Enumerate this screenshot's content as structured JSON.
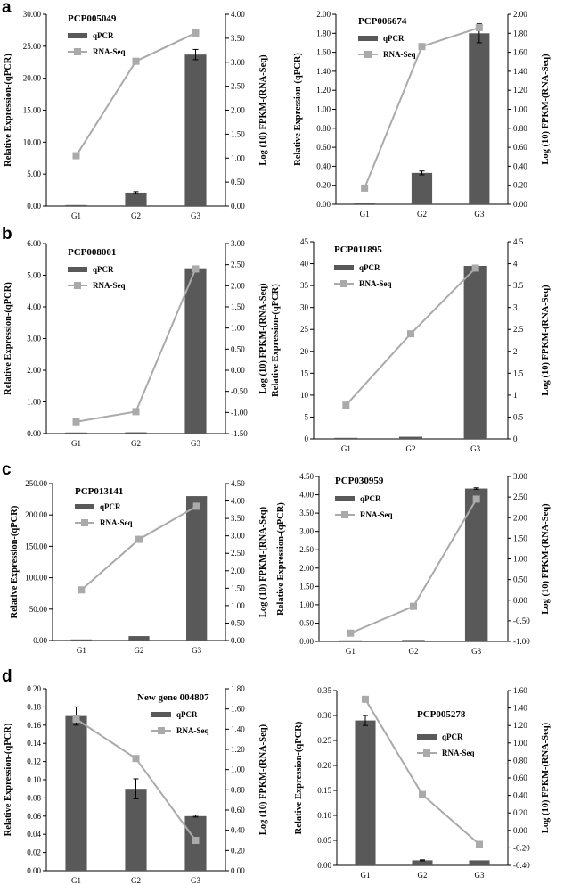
{
  "panels": [
    {
      "letter": "a"
    },
    {
      "letter": "b"
    },
    {
      "letter": "c"
    },
    {
      "letter": "d"
    }
  ],
  "legend": {
    "bar": "qPCR",
    "line": "RNA-Seq"
  },
  "colors": {
    "bar": "#595959",
    "line": "#aaaaaa",
    "axis": "#000000"
  },
  "chart_data": [
    {
      "type": "bar",
      "title": "PCP005049",
      "categories": [
        "G1",
        "G2",
        "G3"
      ],
      "ylabel": "Relative Expression-(qPCR)",
      "y2label": "Log (10) FPKM-(RNA-Seq)",
      "yticks": [
        "0.00",
        "5.00",
        "10.00",
        "15.00",
        "20.00",
        "25.00",
        "30.00"
      ],
      "ylim": [
        0,
        30
      ],
      "y2ticks": [
        "0.00",
        "0.50",
        "1.00",
        "1.50",
        "2.00",
        "2.50",
        "3.00",
        "3.50",
        "4.00"
      ],
      "y2lim": [
        0,
        4
      ],
      "series": [
        {
          "name": "qPCR",
          "type": "bar",
          "axis": "left",
          "values": [
            0,
            2.1,
            23.7
          ],
          "errors": [
            0,
            0.15,
            0.8
          ]
        },
        {
          "name": "RNA-Seq",
          "type": "line",
          "axis": "right",
          "values": [
            1.05,
            3.02,
            3.61
          ]
        }
      ]
    },
    {
      "type": "bar",
      "title": "PCP006674",
      "categories": [
        "G1",
        "G2",
        "G3"
      ],
      "ylabel": "Relative Expression-(qPCR)",
      "y2label": "Log (10) FPKM-(RNA-Seq)",
      "yticks": [
        "0.00",
        "0.20",
        "0.40",
        "0.60",
        "0.80",
        "1.00",
        "1.20",
        "1.40",
        "1.60",
        "1.80",
        "2.00"
      ],
      "ylim": [
        0,
        2
      ],
      "y2ticks": [
        "0.00",
        "0.20",
        "0.40",
        "0.60",
        "0.80",
        "1.00",
        "1.20",
        "1.40",
        "1.60",
        "1.80",
        "2.00"
      ],
      "y2lim": [
        0,
        2
      ],
      "series": [
        {
          "name": "qPCR",
          "type": "bar",
          "axis": "left",
          "values": [
            0.01,
            0.33,
            1.8
          ],
          "errors": [
            0,
            0.02,
            0.1
          ]
        },
        {
          "name": "RNA-Seq",
          "type": "line",
          "axis": "right",
          "values": [
            0.17,
            1.66,
            1.86
          ]
        }
      ]
    },
    {
      "type": "bar",
      "title": "PCP008001",
      "categories": [
        "G1",
        "G2",
        "G3"
      ],
      "ylabel": "Relative Expression-(qPCR)",
      "y2label": "Log (10) FPKM-(RNA-Seq)",
      "yticks": [
        "0.00",
        "1.00",
        "2.00",
        "3.00",
        "4.00",
        "5.00",
        "6.00"
      ],
      "ylim": [
        0,
        6
      ],
      "y2ticks": [
        "-1.50",
        "-1.00",
        "-0.50",
        "0.00",
        "0.50",
        "1.00",
        "1.50",
        "2.00",
        "2.50",
        "3.00"
      ],
      "y2lim": [
        -1.5,
        3
      ],
      "series": [
        {
          "name": "qPCR",
          "type": "bar",
          "axis": "left",
          "values": [
            0.01,
            0.04,
            5.22
          ],
          "errors": [
            0,
            0,
            0
          ]
        },
        {
          "name": "RNA-Seq",
          "type": "line",
          "axis": "right",
          "values": [
            -1.22,
            -0.98,
            2.4
          ]
        }
      ]
    },
    {
      "type": "bar",
      "title": "PCP011895",
      "categories": [
        "G1",
        "G2",
        "G3"
      ],
      "ylabel": "Relative Expression-(qPCR)",
      "y2label": "Log (10) FPKM-(RNA-Seq)",
      "yticks": [
        "0",
        "5",
        "10",
        "15",
        "20",
        "25",
        "30",
        "35",
        "40",
        "45"
      ],
      "ylim": [
        0,
        45
      ],
      "y2ticks": [
        "0",
        "0.5",
        "1",
        "1.5",
        "2",
        "2.5",
        "3",
        "3.5",
        "4",
        "4.5"
      ],
      "y2lim": [
        0,
        4.5
      ],
      "series": [
        {
          "name": "qPCR",
          "type": "bar",
          "axis": "left",
          "values": [
            0,
            0.5,
            39.5
          ],
          "errors": [
            0,
            0,
            0
          ]
        },
        {
          "name": "RNA-Seq",
          "type": "line",
          "axis": "right",
          "values": [
            0.77,
            2.4,
            3.9
          ]
        }
      ]
    },
    {
      "type": "bar",
      "title": "PCP013141",
      "categories": [
        "G1",
        "G2",
        "G3"
      ],
      "ylabel": "Relative Expression-(qPCR)",
      "y2label": "Log (10) FPKM-(RNA-Seq)",
      "yticks": [
        "0.00",
        "50.00",
        "100.00",
        "150.00",
        "200.00",
        "250.00"
      ],
      "ylim": [
        0,
        250
      ],
      "y2ticks": [
        "0.00",
        "0.50",
        "1.00",
        "1.50",
        "2.00",
        "2.50",
        "3.00",
        "3.50",
        "4.00",
        "4.50"
      ],
      "y2lim": [
        0,
        4.5
      ],
      "series": [
        {
          "name": "qPCR",
          "type": "bar",
          "axis": "left",
          "values": [
            0,
            7,
            230
          ],
          "errors": [
            0,
            0,
            0
          ]
        },
        {
          "name": "RNA-Seq",
          "type": "line",
          "axis": "right",
          "values": [
            1.45,
            2.9,
            3.85
          ]
        }
      ]
    },
    {
      "type": "bar",
      "title": "PCP030959",
      "categories": [
        "G1",
        "G2",
        "G3"
      ],
      "ylabel": "Relative Expression-(qPCR)",
      "y2label": "Log (10) FPKM-(RNA-Seq)",
      "yticks": [
        "0.00",
        "0.50",
        "1.00",
        "1.50",
        "2.00",
        "2.50",
        "3.00",
        "3.50",
        "4.00",
        "4.50"
      ],
      "ylim": [
        0,
        4.5
      ],
      "y2ticks": [
        "-1.00",
        "-0.50",
        "0.00",
        "0.50",
        "1.00",
        "1.50",
        "2.00",
        "2.50",
        "3.00"
      ],
      "y2lim": [
        -1,
        3
      ],
      "series": [
        {
          "name": "qPCR",
          "type": "bar",
          "axis": "left",
          "values": [
            0.02,
            0.04,
            4.17
          ],
          "errors": [
            0,
            0,
            0.02
          ]
        },
        {
          "name": "RNA-Seq",
          "type": "line",
          "axis": "right",
          "values": [
            -0.8,
            -0.15,
            2.45
          ]
        }
      ]
    },
    {
      "type": "bar",
      "title": "New gene 004807",
      "categories": [
        "G1",
        "G2",
        "G3"
      ],
      "ylabel": "Relative Expression-(qPCR)",
      "y2label": "Log (10) FPKM-(RNA-Seq)",
      "yticks": [
        "0.00",
        "0.02",
        "0.04",
        "0.06",
        "0.08",
        "0.10",
        "0.12",
        "0.14",
        "0.16",
        "0.18",
        "0.20"
      ],
      "ylim": [
        0,
        0.2
      ],
      "y2ticks": [
        "0.00",
        "0.20",
        "0.40",
        "0.60",
        "0.80",
        "1.00",
        "1.20",
        "1.40",
        "1.60",
        "1.80"
      ],
      "y2lim": [
        0,
        1.8
      ],
      "series": [
        {
          "name": "qPCR",
          "type": "bar",
          "axis": "left",
          "values": [
            0.17,
            0.09,
            0.06
          ],
          "errors": [
            0.01,
            0.011,
            0.001
          ]
        },
        {
          "name": "RNA-Seq",
          "type": "line",
          "axis": "right",
          "values": [
            1.5,
            1.11,
            0.3
          ]
        }
      ]
    },
    {
      "type": "bar",
      "title": "PCP005278",
      "categories": [
        "G1",
        "G2",
        "G3"
      ],
      "ylabel": "Relative Expression-(qPCR)",
      "y2label": "Log (10) FPKM-(RNA-Seq)",
      "yticks": [
        "0.00",
        "0.05",
        "0.10",
        "0.15",
        "0.20",
        "0.25",
        "0.30",
        "0.35"
      ],
      "ylim": [
        0,
        0.35
      ],
      "y2ticks": [
        "-0.40",
        "-0.20",
        "0.00",
        "0.20",
        "0.40",
        "0.60",
        "0.80",
        "1.00",
        "1.20",
        "1.40",
        "1.60"
      ],
      "y2lim": [
        -0.4,
        1.6
      ],
      "series": [
        {
          "name": "qPCR",
          "type": "bar",
          "axis": "left",
          "values": [
            0.29,
            0.01,
            0.01
          ],
          "errors": [
            0.01,
            0.001,
            0
          ]
        },
        {
          "name": "RNA-Seq",
          "type": "line",
          "axis": "right",
          "values": [
            1.5,
            0.41,
            -0.16
          ]
        }
      ]
    }
  ]
}
